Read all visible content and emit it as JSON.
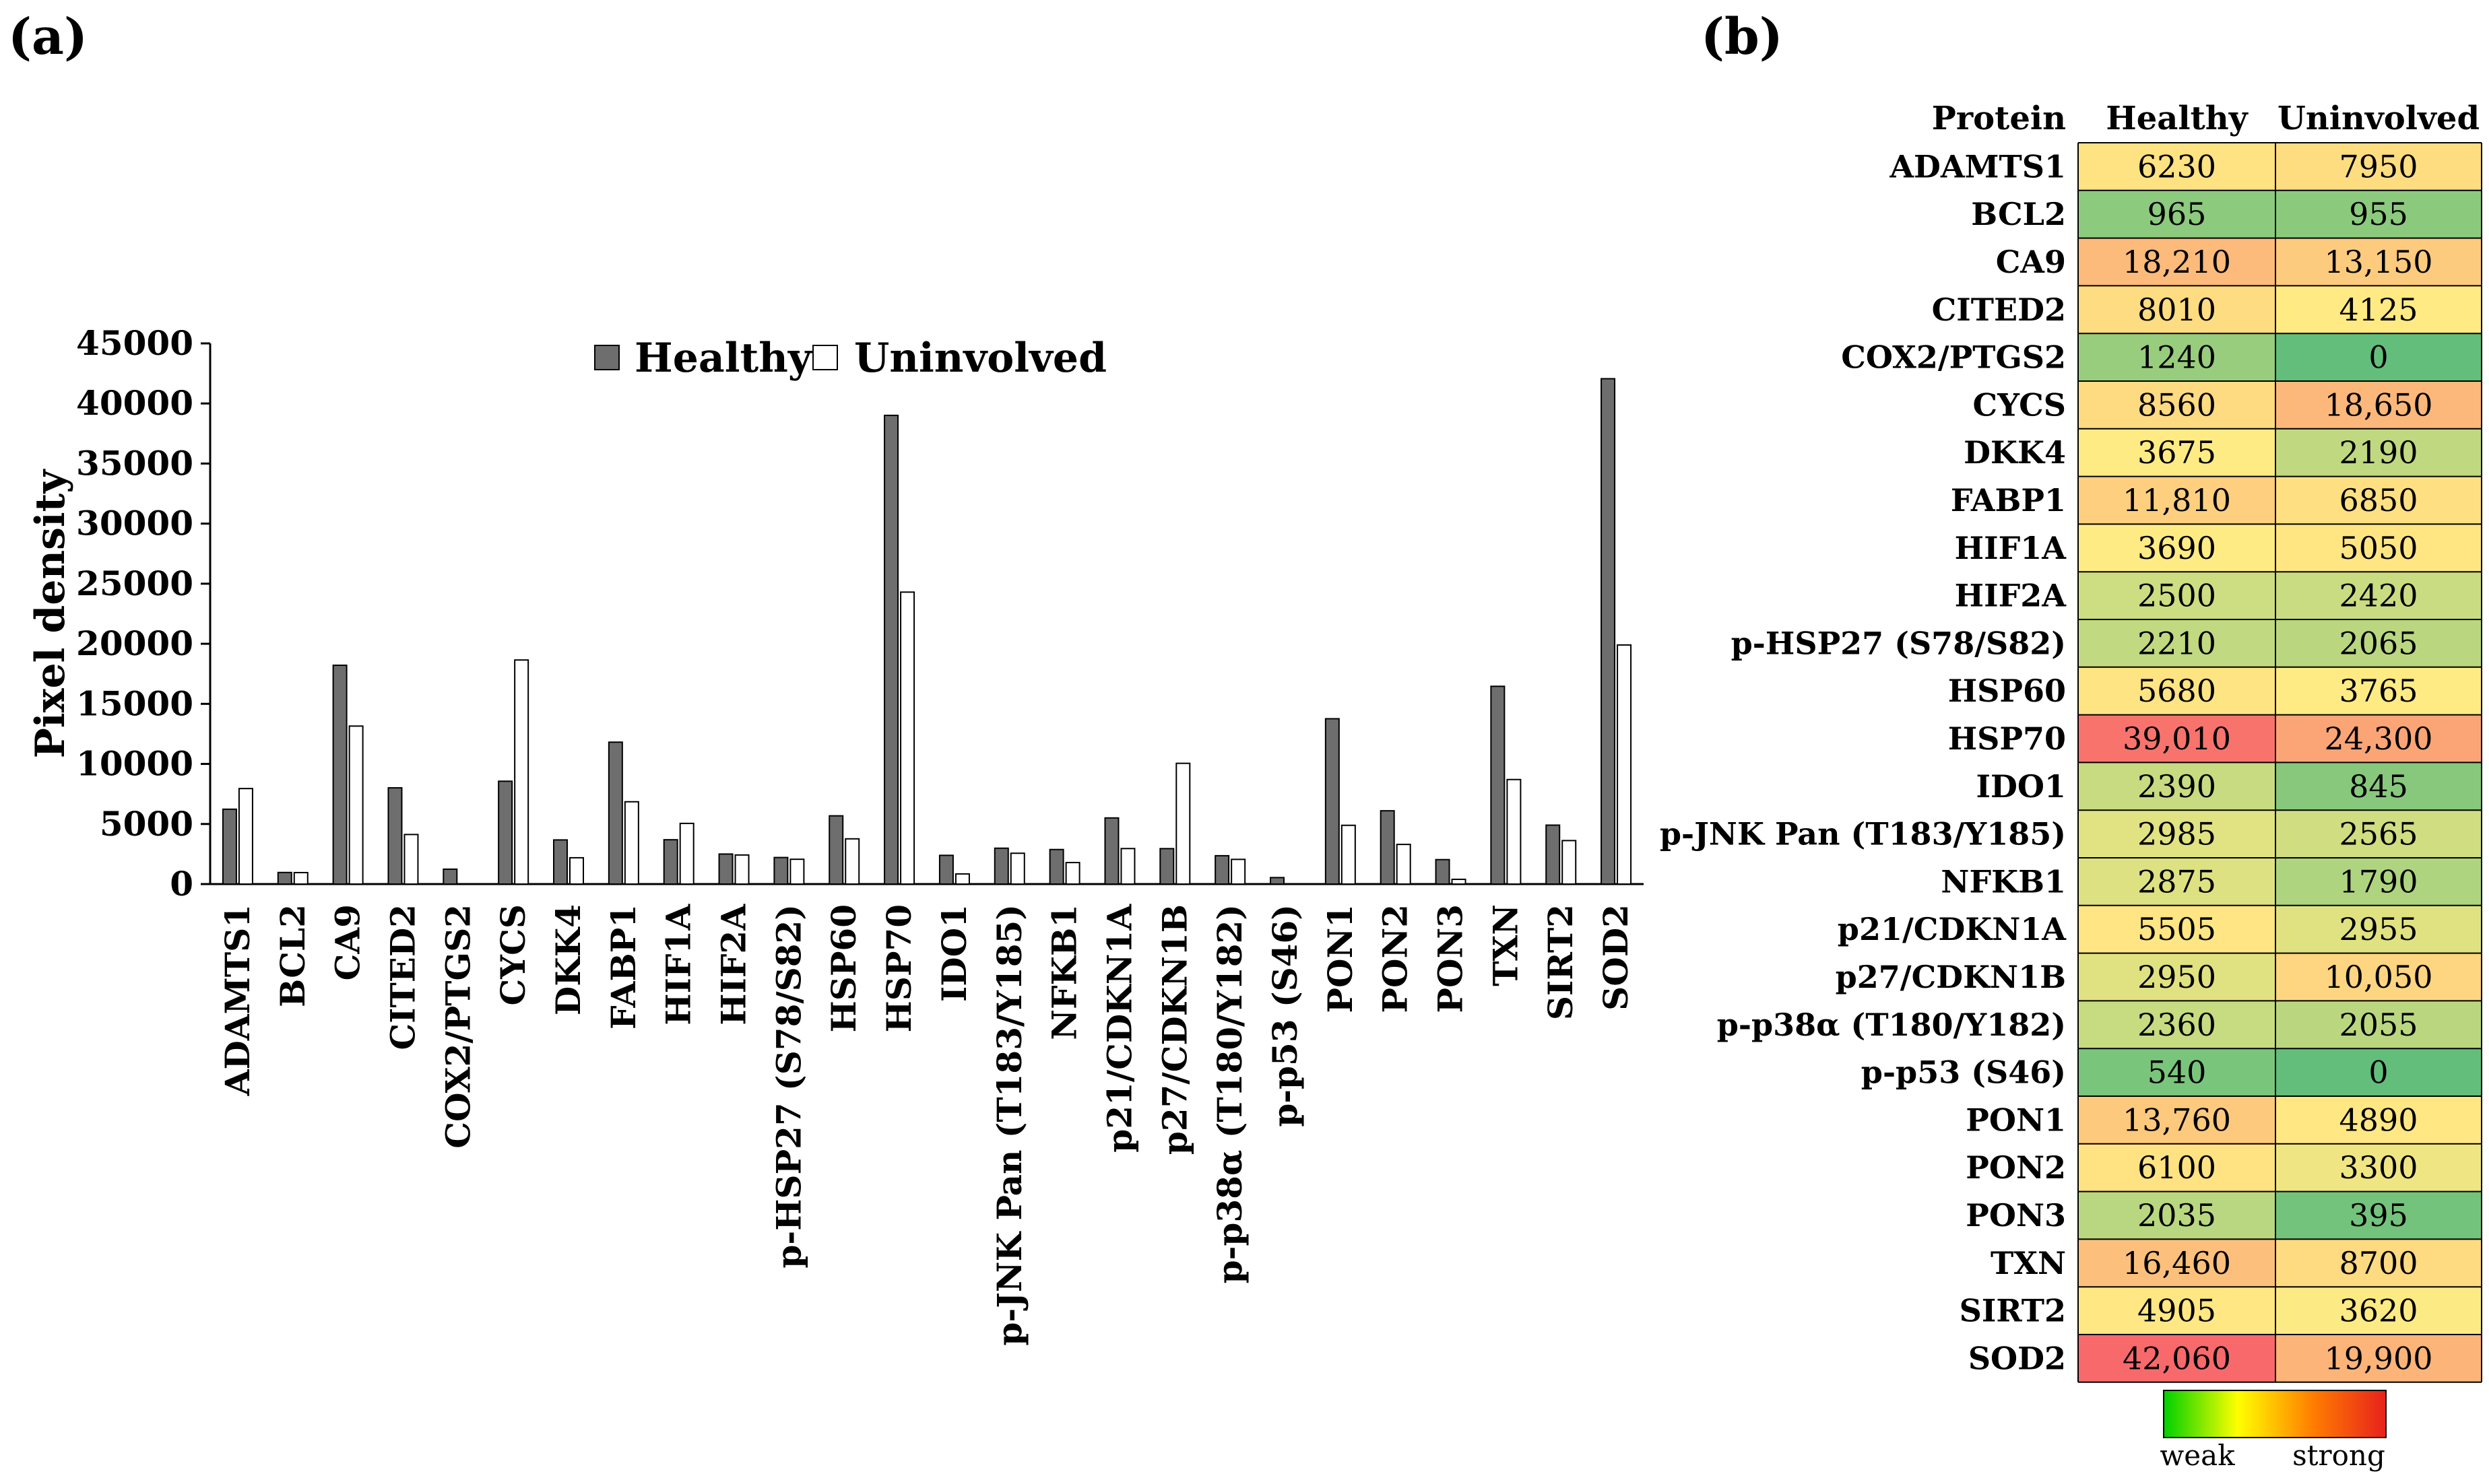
{
  "panel_a_label": "(a)",
  "panel_b_label": "(b)",
  "chart_data": [
    {
      "type": "bar",
      "title": "",
      "xlabel": "",
      "ylabel": "Pixel density",
      "ylim": [
        0,
        45000
      ],
      "yticks": [
        0,
        5000,
        10000,
        15000,
        20000,
        25000,
        30000,
        35000,
        40000,
        45000
      ],
      "grid": false,
      "legend_position": "top-center",
      "categories": [
        "ADAMTS1",
        "BCL2",
        "CA9",
        "CITED2",
        "COX2/PTGS2",
        "CYCS",
        "DKK4",
        "FABP1",
        "HIF1A",
        "HIF2A",
        "p-HSP27 (S78/S82)",
        "HSP60",
        "HSP70",
        "IDO1",
        "p-JNK Pan (T183/Y185)",
        "NFKB1",
        "p21/CDKN1A",
        "p27/CDKN1B",
        "p-p38α (T180/Y182)",
        "p-p53 (S46)",
        "PON1",
        "PON2",
        "PON3",
        "TXN",
        "SIRT2",
        "SOD2"
      ],
      "series": [
        {
          "name": "Healthy",
          "color": "#6e6e6e",
          "values": [
            6230,
            965,
            18210,
            8010,
            1240,
            8560,
            3675,
            11810,
            3690,
            2500,
            2210,
            5680,
            39010,
            2390,
            2985,
            2875,
            5505,
            2950,
            2360,
            540,
            13760,
            6100,
            2035,
            16460,
            4905,
            42060
          ]
        },
        {
          "name": "Uninvolved",
          "color": "#ffffff",
          "values": [
            7950,
            955,
            13150,
            4125,
            0,
            18650,
            2190,
            6850,
            5050,
            2420,
            2065,
            3765,
            24300,
            845,
            2565,
            1790,
            2955,
            10050,
            2055,
            0,
            4890,
            3300,
            395,
            8700,
            3620,
            19900
          ]
        }
      ]
    },
    {
      "type": "heatmap",
      "title": "",
      "column_headers": [
        "Protein",
        "Healthy",
        "Uninvolved"
      ],
      "rows": [
        {
          "protein": "ADAMTS1",
          "healthy": "6230",
          "uninvolved": "7950"
        },
        {
          "protein": "BCL2",
          "healthy": "965",
          "uninvolved": "955"
        },
        {
          "protein": "CA9",
          "healthy": "18,210",
          "uninvolved": "13,150"
        },
        {
          "protein": "CITED2",
          "healthy": "8010",
          "uninvolved": "4125"
        },
        {
          "protein": "COX2/PTGS2",
          "healthy": "1240",
          "uninvolved": "0"
        },
        {
          "protein": "CYCS",
          "healthy": "8560",
          "uninvolved": "18,650"
        },
        {
          "protein": "DKK4",
          "healthy": "3675",
          "uninvolved": "2190"
        },
        {
          "protein": "FABP1",
          "healthy": "11,810",
          "uninvolved": "6850"
        },
        {
          "protein": "HIF1A",
          "healthy": "3690",
          "uninvolved": "5050"
        },
        {
          "protein": "HIF2A",
          "healthy": "2500",
          "uninvolved": "2420"
        },
        {
          "protein": "p-HSP27 (S78/S82)",
          "healthy": "2210",
          "uninvolved": "2065"
        },
        {
          "protein": "HSP60",
          "healthy": "5680",
          "uninvolved": "3765"
        },
        {
          "protein": "HSP70",
          "healthy": "39,010",
          "uninvolved": "24,300"
        },
        {
          "protein": "IDO1",
          "healthy": "2390",
          "uninvolved": "845"
        },
        {
          "protein": "p-JNK Pan (T183/Y185)",
          "healthy": "2985",
          "uninvolved": "2565"
        },
        {
          "protein": "NFKB1",
          "healthy": "2875",
          "uninvolved": "1790"
        },
        {
          "protein": "p21/CDKN1A",
          "healthy": "5505",
          "uninvolved": "2955"
        },
        {
          "protein": "p27/CDKN1B",
          "healthy": "2950",
          "uninvolved": "10,050"
        },
        {
          "protein": "p-p38α (T180/Y182)",
          "healthy": "2360",
          "uninvolved": "2055"
        },
        {
          "protein": "p-p53 (S46)",
          "healthy": "540",
          "uninvolved": "0"
        },
        {
          "protein": "PON1",
          "healthy": "13,760",
          "uninvolved": "4890"
        },
        {
          "protein": "PON2",
          "healthy": "6100",
          "uninvolved": "3300"
        },
        {
          "protein": "PON3",
          "healthy": "2035",
          "uninvolved": "395"
        },
        {
          "protein": "TXN",
          "healthy": "16,460",
          "uninvolved": "8700"
        },
        {
          "protein": "SIRT2",
          "healthy": "4905",
          "uninvolved": "3620"
        },
        {
          "protein": "SOD2",
          "healthy": "42,060",
          "uninvolved": "19,900"
        }
      ],
      "color_scale": {
        "low_label": "weak",
        "high_label": "strong",
        "colors": [
          "#63be7b",
          "#ffeb84",
          "#f8696b"
        ],
        "gradient_colors": [
          "#00d000",
          "#ffff00",
          "#ff7f00",
          "#e8211c"
        ]
      }
    }
  ]
}
